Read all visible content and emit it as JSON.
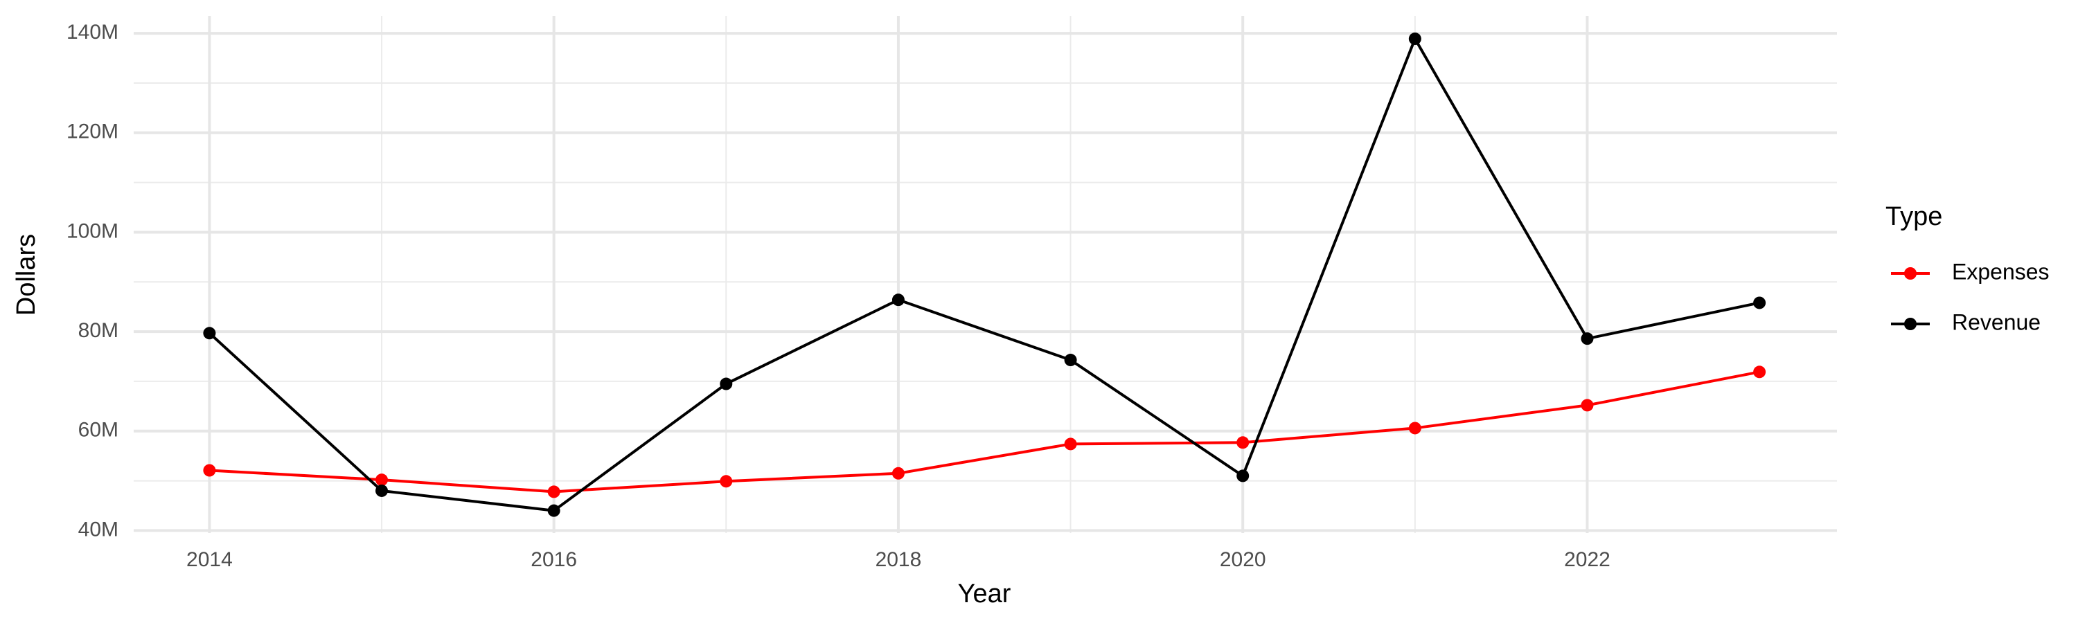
{
  "chart_data": {
    "type": "line",
    "x_label": "Year",
    "y_label": "Dollars",
    "legend_title": "Type",
    "x": [
      2014,
      2015,
      2016,
      2017,
      2018,
      2019,
      2020,
      2021,
      2022,
      2023
    ],
    "series": [
      {
        "name": "Expenses",
        "color": "#ff0000",
        "values": [
          52100000,
          50200000,
          47800000,
          49900000,
          51500000,
          57400000,
          57700000,
          60600000,
          65200000,
          71900000
        ]
      },
      {
        "name": "Revenue",
        "color": "#000000",
        "values": [
          79700000,
          48000000,
          44000000,
          69500000,
          86400000,
          74300000,
          51000000,
          138900000,
          78600000,
          85800000
        ]
      }
    ],
    "xlim": [
      2013.56,
      2023.45
    ],
    "ylim": [
      39500000,
      143500000
    ],
    "xticks": [
      2014,
      2016,
      2018,
      2020,
      2022
    ],
    "yticks": [
      {
        "value": 40000000,
        "label": "40M"
      },
      {
        "value": 60000000,
        "label": "60M"
      },
      {
        "value": 80000000,
        "label": "80M"
      },
      {
        "value": 100000000,
        "label": "100M"
      },
      {
        "value": 120000000,
        "label": "120M"
      },
      {
        "value": 140000000,
        "label": "140M"
      }
    ],
    "grid": true,
    "minor_grid": true,
    "legend_position": "right"
  }
}
